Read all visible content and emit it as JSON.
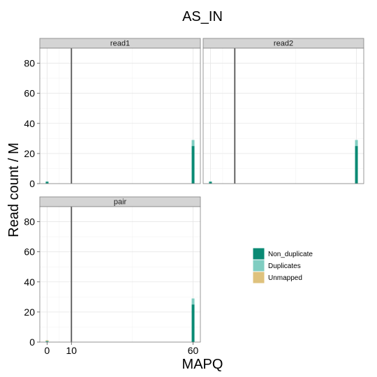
{
  "chart_data": {
    "type": "bar",
    "title": "AS_IN",
    "xlabel": "MAPQ",
    "ylabel": "Read count / M",
    "xlim": [
      -3,
      63
    ],
    "ylim": [
      0,
      90
    ],
    "x_ticks": [
      0,
      10,
      60
    ],
    "y_ticks": [
      0,
      20,
      40,
      60,
      80
    ],
    "grid": true,
    "legend_position": "right",
    "series": [
      {
        "name": "Non_duplicate",
        "color": "#0a8a74"
      },
      {
        "name": "Duplicates",
        "color": "#80cdc1"
      },
      {
        "name": "Unmapped",
        "color": "#dfc27d"
      }
    ],
    "vline_x": 10,
    "panels": [
      {
        "label": "read1",
        "bars": [
          {
            "x": 0,
            "Non_duplicate": 1.2,
            "Duplicates": 0.3,
            "Unmapped": 0
          },
          {
            "x": 60,
            "Non_duplicate": 25,
            "Duplicates": 4,
            "Unmapped": 0
          }
        ]
      },
      {
        "label": "read2",
        "bars": [
          {
            "x": 0,
            "Non_duplicate": 1.2,
            "Duplicates": 0.3,
            "Unmapped": 0
          },
          {
            "x": 60,
            "Non_duplicate": 25,
            "Duplicates": 4,
            "Unmapped": 0
          }
        ]
      },
      {
        "label": "pair",
        "bars": [
          {
            "x": 0,
            "Non_duplicate": 0.6,
            "Duplicates": 0.2,
            "Unmapped": 0.5
          },
          {
            "x": 60,
            "Non_duplicate": 25,
            "Duplicates": 4,
            "Unmapped": 0
          }
        ]
      }
    ]
  }
}
